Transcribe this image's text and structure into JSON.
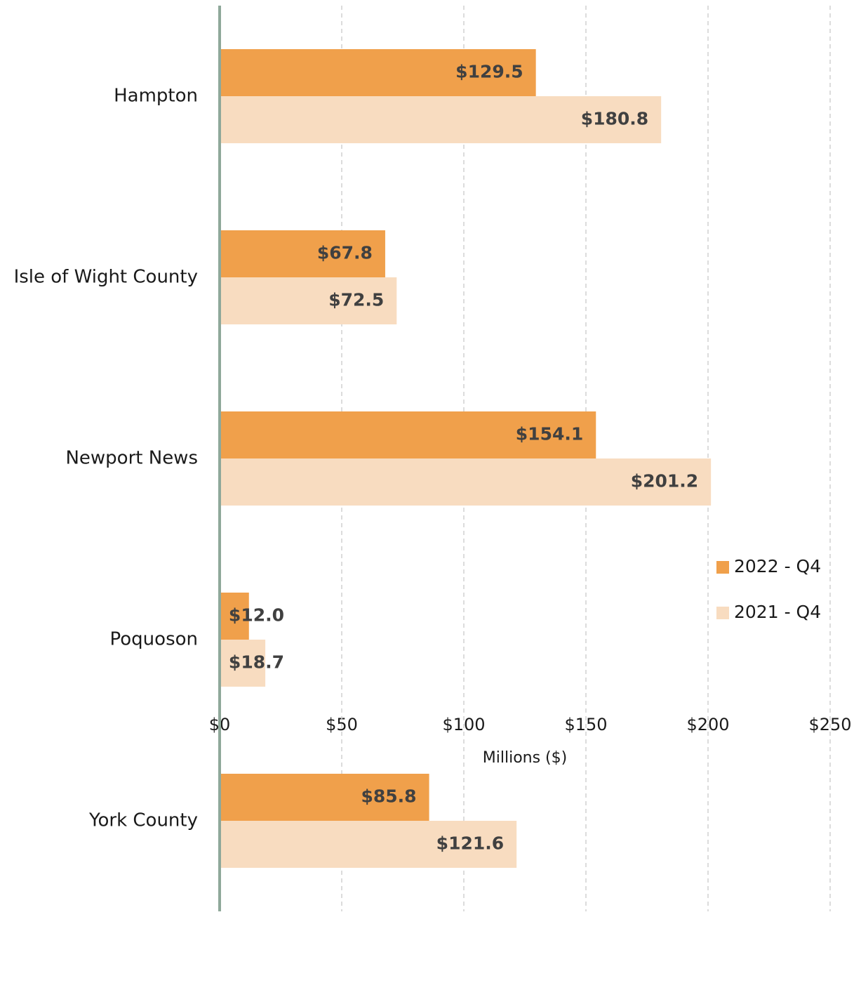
{
  "chart_data": {
    "type": "bar",
    "orientation": "horizontal",
    "categories": [
      "Hampton",
      "Isle of Wight County",
      "Newport News",
      "Poquoson",
      "York County"
    ],
    "series": [
      {
        "name": "2022 - Q4",
        "color": "#f0a04b",
        "values": [
          129.5,
          67.8,
          154.1,
          12.0,
          85.8
        ],
        "value_labels": [
          "$129.5",
          "$67.8",
          "$154.1",
          "$12.0",
          "$85.8"
        ]
      },
      {
        "name": "2021 - Q4",
        "color": "#f8dcc0",
        "values": [
          180.8,
          72.5,
          201.2,
          18.7,
          121.6
        ],
        "value_labels": [
          "$180.8",
          "$72.5",
          "$201.2",
          "$18.7",
          "$121.6"
        ]
      }
    ],
    "xlabel": "Millions ($)",
    "xlim": [
      0,
      250
    ],
    "xticks": [
      {
        "value": 0,
        "label": "$0"
      },
      {
        "value": 50,
        "label": "$50"
      },
      {
        "value": 100,
        "label": "$100"
      },
      {
        "value": 150,
        "label": "$150"
      },
      {
        "value": 200,
        "label": "$200"
      },
      {
        "value": 250,
        "label": "$250"
      }
    ],
    "grid": true,
    "legend": "right"
  }
}
